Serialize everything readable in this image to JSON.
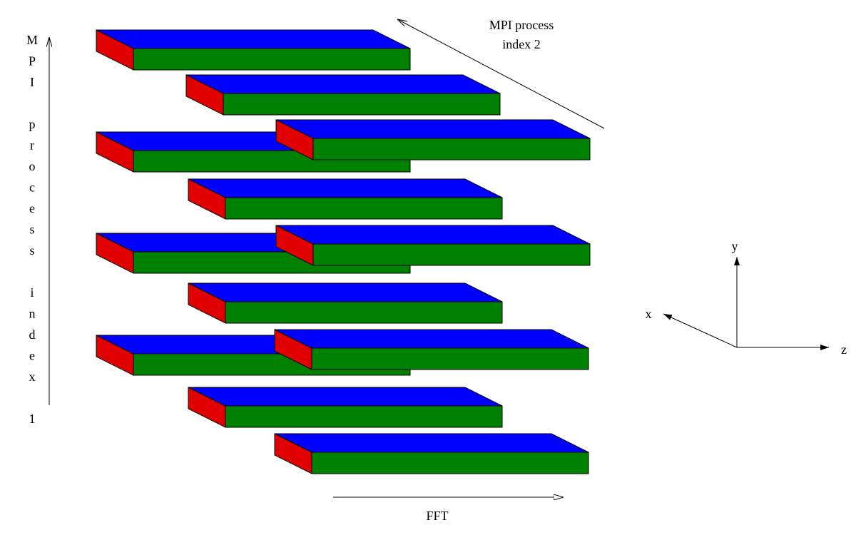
{
  "labels": {
    "process_index_2": [
      "MPI process",
      "index 2"
    ],
    "process_index_1": "MPI process index 1",
    "fft": "FFT",
    "axis_x": "x",
    "axis_y": "y",
    "axis_z": "z"
  }
}
